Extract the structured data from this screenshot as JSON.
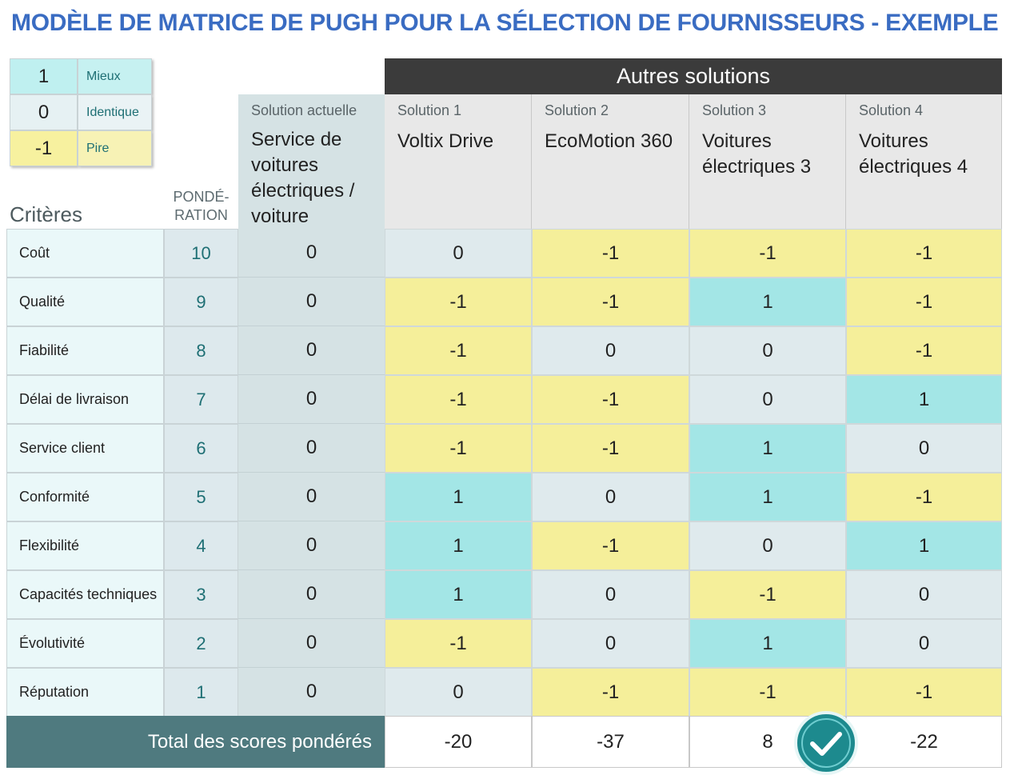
{
  "title": "MODÈLE DE MATRICE DE PUGH POUR LA SÉLECTION DE FOURNISSEURS - EXEMPLE",
  "legend": [
    {
      "value": 1,
      "label": "Mieux"
    },
    {
      "value": 0,
      "label": "Identique"
    },
    {
      "value": -1,
      "label": "Pire"
    }
  ],
  "header": {
    "criteria": "Critères",
    "weight": "PONDÉ-RATION"
  },
  "current_solution": {
    "label": "Solution actuelle",
    "name": "Service de voitures électriques / voiture"
  },
  "other_solutions_title": "Autres solutions",
  "solutions": [
    {
      "label": "Solution 1",
      "name": "Voltix Drive"
    },
    {
      "label": "Solution 2",
      "name": "EcoMotion 360"
    },
    {
      "label": "Solution 3",
      "name": "Voitures électriques 3"
    },
    {
      "label": "Solution 4",
      "name": "Voitures électriques 4"
    }
  ],
  "rows": [
    {
      "criterion": "Coût",
      "weight": 10,
      "current": 0,
      "scores": [
        0,
        -1,
        -1,
        -1
      ]
    },
    {
      "criterion": "Qualité",
      "weight": 9,
      "current": 0,
      "scores": [
        -1,
        -1,
        1,
        -1
      ]
    },
    {
      "criterion": "Fiabilité",
      "weight": 8,
      "current": 0,
      "scores": [
        -1,
        0,
        0,
        -1
      ]
    },
    {
      "criterion": "Délai de livraison",
      "weight": 7,
      "current": 0,
      "scores": [
        -1,
        -1,
        0,
        1
      ]
    },
    {
      "criterion": "Service client",
      "weight": 6,
      "current": 0,
      "scores": [
        -1,
        -1,
        1,
        0
      ]
    },
    {
      "criterion": "Conformité",
      "weight": 5,
      "current": 0,
      "scores": [
        1,
        0,
        1,
        -1
      ]
    },
    {
      "criterion": "Flexibilité",
      "weight": 4,
      "current": 0,
      "scores": [
        1,
        -1,
        0,
        1
      ]
    },
    {
      "criterion": "Capacités techniques",
      "weight": 3,
      "current": 0,
      "scores": [
        1,
        0,
        -1,
        0
      ]
    },
    {
      "criterion": "Évolutivité",
      "weight": 2,
      "current": 0,
      "scores": [
        -1,
        0,
        1,
        0
      ]
    },
    {
      "criterion": "Réputation",
      "weight": 1,
      "current": 0,
      "scores": [
        0,
        -1,
        -1,
        -1
      ]
    }
  ],
  "total_label": "Total des scores pondérés",
  "totals": [
    -20,
    -37,
    8,
    -22
  ]
}
